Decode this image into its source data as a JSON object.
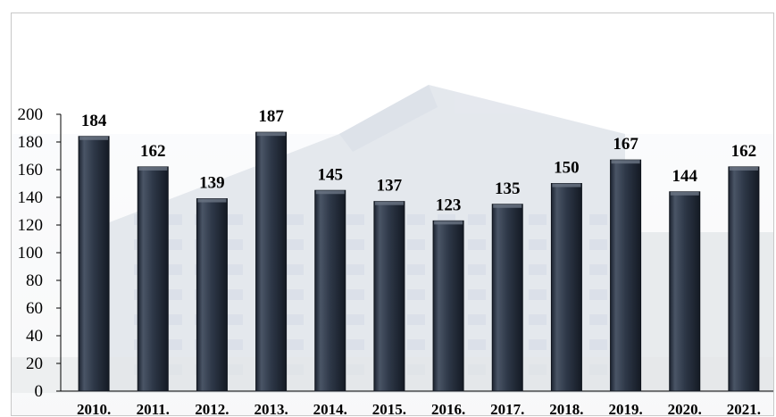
{
  "chart_data": {
    "type": "bar",
    "title": "",
    "xlabel": "",
    "ylabel": "",
    "categories": [
      "2010.",
      "2011.",
      "2012.",
      "2013.",
      "2014.",
      "2015.",
      "2016.",
      "2017.",
      "2018.",
      "2019.",
      "2020.",
      "2021."
    ],
    "values": [
      184,
      162,
      139,
      187,
      145,
      137,
      123,
      135,
      150,
      167,
      144,
      162
    ],
    "ylim": [
      0,
      200
    ],
    "yticks": [
      0,
      20,
      40,
      60,
      80,
      100,
      120,
      140,
      160,
      180,
      200
    ],
    "grid": false,
    "legend": "none",
    "bar_color": "#2c3545",
    "bar_highlight": "#6b7585"
  }
}
